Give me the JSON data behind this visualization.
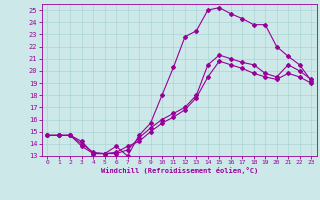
{
  "xlabel": "Windchill (Refroidissement éolien,°C)",
  "background_color": "#cce8e8",
  "grid_color": "#aad4d4",
  "line_color": "#990099",
  "xlim": [
    -0.5,
    23.5
  ],
  "ylim": [
    13,
    25.5
  ],
  "xticks": [
    0,
    1,
    2,
    3,
    4,
    5,
    6,
    7,
    8,
    9,
    10,
    11,
    12,
    13,
    14,
    15,
    16,
    17,
    18,
    19,
    20,
    21,
    22,
    23
  ],
  "yticks": [
    13,
    14,
    15,
    16,
    17,
    18,
    19,
    20,
    21,
    22,
    23,
    24,
    25
  ],
  "series": [
    [
      14.7,
      14.7,
      14.7,
      14.2,
      13.2,
      13.2,
      13.8,
      13.0,
      14.7,
      15.7,
      18.0,
      20.3,
      22.8,
      23.3,
      25.0,
      25.2,
      24.7,
      24.3,
      23.8,
      23.8,
      22.0,
      21.2,
      20.5,
      19.2
    ],
    [
      14.7,
      14.7,
      14.7,
      13.8,
      13.2,
      13.2,
      13.2,
      13.5,
      14.5,
      15.3,
      16.0,
      16.5,
      17.0,
      18.0,
      20.5,
      21.3,
      21.0,
      20.7,
      20.5,
      19.8,
      19.5,
      20.5,
      20.0,
      19.3
    ],
    [
      14.7,
      14.7,
      14.7,
      14.0,
      13.3,
      13.2,
      13.3,
      13.8,
      14.2,
      15.0,
      15.7,
      16.2,
      16.8,
      17.8,
      19.5,
      20.8,
      20.5,
      20.2,
      19.8,
      19.5,
      19.3,
      19.8,
      19.5,
      19.0
    ]
  ]
}
